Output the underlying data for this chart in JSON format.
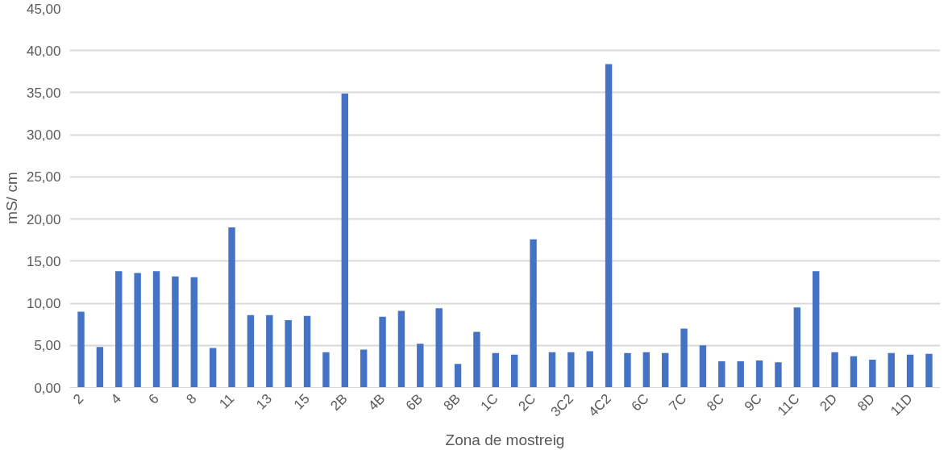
{
  "chart_data": {
    "type": "bar",
    "xlabel": "Zona de mostreig",
    "ylabel": "mS/ cm",
    "categories": [
      "2",
      null,
      "4",
      null,
      "6",
      null,
      "8",
      null,
      "11",
      null,
      "13",
      null,
      "15",
      null,
      "2B",
      null,
      "4B",
      null,
      "6B",
      null,
      "8B",
      null,
      "1C",
      null,
      "2C",
      null,
      "3C2",
      null,
      "4C2",
      null,
      "6C",
      null,
      "7C",
      null,
      "8C",
      null,
      "9C",
      null,
      "11C",
      null,
      "2D",
      null,
      "8D",
      null,
      "11D",
      null
    ],
    "values": [
      9.0,
      4.8,
      13.8,
      13.6,
      13.8,
      13.2,
      13.1,
      4.7,
      19.0,
      8.6,
      8.6,
      8.0,
      8.5,
      4.2,
      34.9,
      4.5,
      8.4,
      9.1,
      5.2,
      9.4,
      2.8,
      6.6,
      4.1,
      3.9,
      17.6,
      4.2,
      4.2,
      4.3,
      38.4,
      4.1,
      4.2,
      4.1,
      7.0,
      5.0,
      3.1,
      3.1,
      3.2,
      3.0,
      9.5,
      13.8,
      4.2,
      3.7,
      3.3,
      4.1,
      3.9,
      4.0
    ],
    "color": "#4472c4",
    "ylim": [
      0,
      45
    ],
    "yticks": [
      {
        "value": 0,
        "label": "0,00"
      },
      {
        "value": 5,
        "label": "5,00"
      },
      {
        "value": 10,
        "label": "10,00"
      },
      {
        "value": 15,
        "label": "15,00"
      },
      {
        "value": 20,
        "label": "20,00"
      },
      {
        "value": 25,
        "label": "25,00"
      },
      {
        "value": 30,
        "label": "30,00"
      },
      {
        "value": 35,
        "label": "35,00"
      },
      {
        "value": 40,
        "label": "40,00"
      },
      {
        "value": 45,
        "label": "45,00"
      }
    ],
    "grid": "y"
  }
}
